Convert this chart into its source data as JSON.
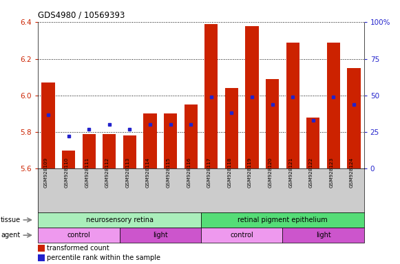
{
  "title": "GDS4980 / 10569393",
  "samples": [
    "GSM928109",
    "GSM928110",
    "GSM928111",
    "GSM928112",
    "GSM928113",
    "GSM928114",
    "GSM928115",
    "GSM928116",
    "GSM928117",
    "GSM928118",
    "GSM928119",
    "GSM928120",
    "GSM928121",
    "GSM928122",
    "GSM928123",
    "GSM928124"
  ],
  "red_values": [
    6.07,
    5.7,
    5.79,
    5.79,
    5.78,
    5.9,
    5.9,
    5.95,
    6.39,
    6.04,
    6.38,
    6.09,
    6.29,
    5.88,
    6.29,
    6.15
  ],
  "blue_values": [
    37,
    22,
    27,
    30,
    27,
    30,
    30,
    30,
    49,
    38,
    49,
    44,
    49,
    33,
    49,
    44
  ],
  "ylim_left": [
    5.6,
    6.4
  ],
  "ylim_right": [
    0,
    100
  ],
  "yticks_left": [
    5.6,
    5.8,
    6.0,
    6.2,
    6.4
  ],
  "yticks_right": [
    0,
    25,
    50,
    75,
    100
  ],
  "ytick_labels_right": [
    "0",
    "25",
    "50",
    "75",
    "100%"
  ],
  "bar_color": "#cc2200",
  "dot_color": "#2222cc",
  "tissue_groups": [
    {
      "label": "neurosensory retina",
      "start": 0,
      "end": 8,
      "color": "#aaeebb"
    },
    {
      "label": "retinal pigment epithelium",
      "start": 8,
      "end": 16,
      "color": "#55dd77"
    }
  ],
  "agent_groups": [
    {
      "label": "control",
      "start": 0,
      "end": 4,
      "color": "#ee99ee"
    },
    {
      "label": "light",
      "start": 4,
      "end": 8,
      "color": "#cc55cc"
    },
    {
      "label": "control",
      "start": 8,
      "end": 12,
      "color": "#ee99ee"
    },
    {
      "label": "light",
      "start": 12,
      "end": 16,
      "color": "#cc55cc"
    }
  ],
  "legend_items": [
    {
      "label": "transformed count",
      "color": "#cc2200"
    },
    {
      "label": "percentile rank within the sample",
      "color": "#2222cc"
    }
  ],
  "axis_label_color_left": "#cc2200",
  "axis_label_color_right": "#2222cc",
  "xlabel_bg": "#cccccc"
}
